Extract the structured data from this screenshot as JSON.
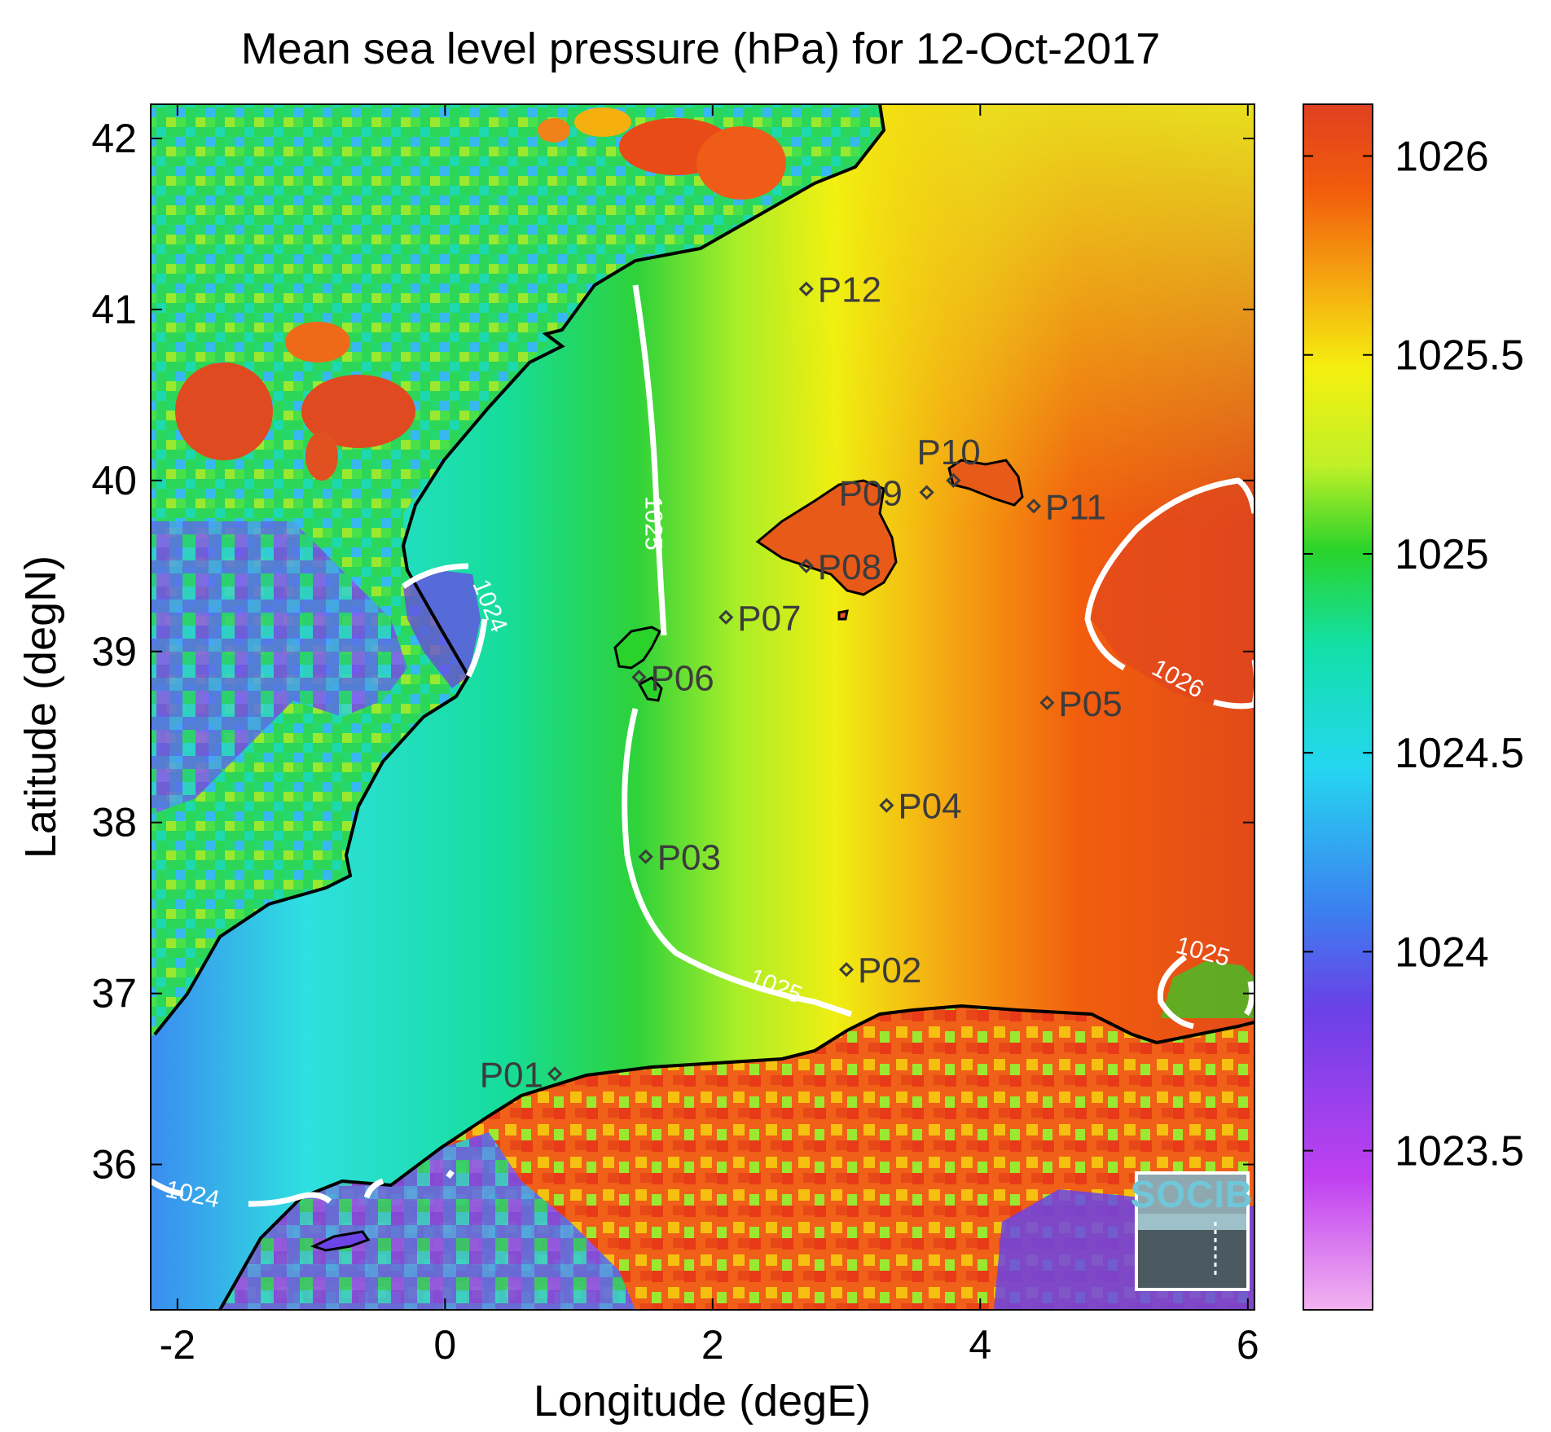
{
  "title": "Mean sea level pressure (hPa) for 12-Oct-2017",
  "xlabel": "Longitude (degE)",
  "ylabel": "Latitude (degN)",
  "logo_text": "SOCIB",
  "chart_data": {
    "type": "heatmap",
    "xlim": [
      -2.2,
      6.05
    ],
    "ylim": [
      35.15,
      42.2
    ],
    "x_ticks": [
      -2,
      0,
      2,
      4,
      6
    ],
    "x_tick_labels": [
      "-2",
      "0",
      "2",
      "4",
      "6"
    ],
    "y_ticks": [
      36,
      37,
      38,
      39,
      40,
      41,
      42
    ],
    "y_tick_labels": [
      "36",
      "37",
      "38",
      "39",
      "40",
      "41",
      "42"
    ],
    "colorbar": {
      "range": [
        1023.1,
        1026.13
      ],
      "ticks": [
        1023.5,
        1024,
        1024.5,
        1025,
        1025.5,
        1026
      ],
      "tick_labels": [
        "1023.5",
        "1024",
        "1024.5",
        "1025",
        "1025.5",
        "1026"
      ],
      "colors": [
        "#f2b3f0",
        "#c040f0",
        "#6a40e6",
        "#3c7ff0",
        "#25d6f0",
        "#12e0a8",
        "#2ad32a",
        "#bff028",
        "#f5f010",
        "#f5a010",
        "#f25b0c",
        "#e04020"
      ]
    },
    "stations": [
      {
        "label": "P01",
        "lon": 0.82,
        "lat": 36.53
      },
      {
        "label": "P02",
        "lon": 3.0,
        "lat": 37.14
      },
      {
        "label": "P03",
        "lon": 1.5,
        "lat": 37.8
      },
      {
        "label": "P04",
        "lon": 3.3,
        "lat": 38.1
      },
      {
        "label": "P05",
        "lon": 4.5,
        "lat": 38.7
      },
      {
        "label": "P06",
        "lon": 1.45,
        "lat": 38.85
      },
      {
        "label": "P07",
        "lon": 2.1,
        "lat": 39.2
      },
      {
        "label": "P08",
        "lon": 2.7,
        "lat": 39.5
      },
      {
        "label": "P09",
        "lon": 3.6,
        "lat": 39.93
      },
      {
        "label": "P10",
        "lon": 3.8,
        "lat": 40.0
      },
      {
        "label": "P11",
        "lon": 4.4,
        "lat": 39.85
      },
      {
        "label": "P12",
        "lon": 2.7,
        "lat": 41.12
      }
    ],
    "contour_labels": [
      {
        "text": "1025",
        "lon": 1.5,
        "lat": 39.75
      },
      {
        "text": "1025",
        "lon": 2.45,
        "lat": 37.0
      },
      {
        "text": "1024",
        "lon": 0.28,
        "lat": 39.25
      },
      {
        "text": "1026",
        "lon": 5.45,
        "lat": 38.8
      },
      {
        "text": "1025",
        "lon": 5.65,
        "lat": 37.2
      },
      {
        "text": "1024",
        "lon": -1.9,
        "lat": 35.78
      }
    ]
  }
}
